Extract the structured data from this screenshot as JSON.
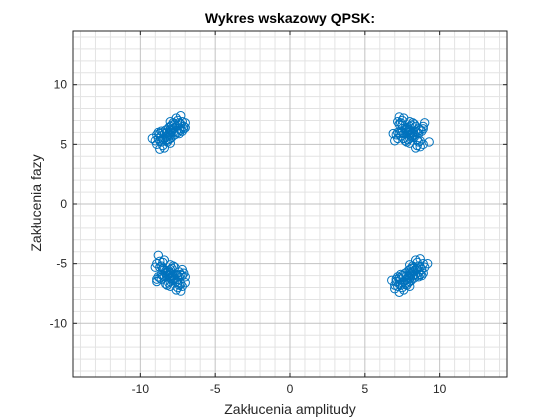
{
  "chart_data": {
    "type": "scatter",
    "title": "Wykres wskazowy QPSK:",
    "xlabel": "Zakłucenia amplitudy",
    "ylabel": "Zakłucenia fazy",
    "xlim": [
      -14.5,
      14.5
    ],
    "ylim": [
      -14.5,
      14.5
    ],
    "xticks": [
      -10,
      -5,
      0,
      5,
      10
    ],
    "yticks": [
      -10,
      -5,
      0,
      5,
      10
    ],
    "xtick_labels": [
      "-10",
      "-5",
      "0",
      "5",
      "10"
    ],
    "ytick_labels": [
      "-10",
      "-5",
      "0",
      "5",
      "10"
    ],
    "grid": true,
    "minor_grid": true,
    "marker": "open-circle",
    "color": "#0072BD",
    "series": [
      {
        "points": [
          [
            -8.0,
            6.0
          ],
          [
            -8.6,
            5.2
          ],
          [
            -7.4,
            6.8
          ],
          [
            -8.3,
            5.6
          ],
          [
            -7.7,
            6.4
          ],
          [
            -8.9,
            5.0
          ],
          [
            -7.2,
            6.9
          ],
          [
            -8.1,
            5.9
          ],
          [
            -7.9,
            6.1
          ],
          [
            -8.5,
            5.4
          ],
          [
            -7.5,
            6.6
          ],
          [
            -8.2,
            5.7
          ],
          [
            -7.8,
            6.3
          ],
          [
            -8.7,
            5.3
          ],
          [
            -7.3,
            6.7
          ],
          [
            -8.0,
            5.8
          ],
          [
            -8.0,
            6.2
          ],
          [
            -8.4,
            5.9
          ],
          [
            -7.6,
            6.1
          ],
          [
            -8.6,
            5.7
          ],
          [
            -7.4,
            6.3
          ],
          [
            -8.8,
            5.5
          ],
          [
            -7.1,
            6.5
          ],
          [
            -8.3,
            6.2
          ],
          [
            -7.7,
            5.8
          ],
          [
            -9.0,
            5.3
          ],
          [
            -7.0,
            6.8
          ],
          [
            -8.2,
            5.2
          ],
          [
            -7.8,
            6.8
          ],
          [
            -8.5,
            6.0
          ],
          [
            -7.5,
            6.0
          ],
          [
            -8.1,
            6.4
          ],
          [
            -7.9,
            5.6
          ],
          [
            -8.7,
            5.9
          ],
          [
            -7.3,
            6.2
          ],
          [
            -8.4,
            4.7
          ],
          [
            -7.6,
            7.2
          ],
          [
            -8.9,
            5.8
          ],
          [
            -7.2,
            6.1
          ],
          [
            -8.0,
            5.5
          ],
          [
            -8.0,
            6.5
          ],
          [
            -8.6,
            6.1
          ],
          [
            -7.4,
            5.9
          ],
          [
            -8.3,
            5.3
          ],
          [
            -7.7,
            6.7
          ],
          [
            -8.8,
            6.0
          ],
          [
            -7.1,
            6.3
          ],
          [
            -8.2,
            6.0
          ],
          [
            -7.8,
            6.0
          ],
          [
            -8.5,
            4.9
          ],
          [
            -7.5,
            7.0
          ],
          [
            -8.1,
            5.4
          ],
          [
            -7.9,
            6.6
          ],
          [
            -9.2,
            5.5
          ],
          [
            -7.0,
            6.4
          ],
          [
            -8.4,
            5.5
          ],
          [
            -7.6,
            6.5
          ],
          [
            -8.0,
            5.1
          ],
          [
            -8.0,
            6.9
          ],
          [
            -8.7,
            4.6
          ],
          [
            -7.3,
            7.4
          ],
          [
            8.0,
            6.0
          ],
          [
            7.4,
            6.8
          ],
          [
            8.6,
            5.2
          ],
          [
            7.7,
            6.4
          ],
          [
            8.3,
            5.6
          ],
          [
            7.2,
            6.9
          ],
          [
            8.9,
            5.0
          ],
          [
            7.9,
            6.1
          ],
          [
            8.1,
            5.9
          ],
          [
            7.5,
            6.6
          ],
          [
            8.5,
            5.4
          ],
          [
            7.8,
            6.3
          ],
          [
            8.2,
            5.7
          ],
          [
            7.3,
            6.7
          ],
          [
            8.7,
            5.3
          ],
          [
            8.0,
            6.2
          ],
          [
            8.0,
            5.8
          ],
          [
            7.6,
            5.9
          ],
          [
            8.4,
            6.1
          ],
          [
            7.4,
            5.7
          ],
          [
            8.6,
            6.3
          ],
          [
            7.2,
            5.5
          ],
          [
            8.9,
            6.5
          ],
          [
            7.7,
            6.2
          ],
          [
            8.3,
            5.8
          ],
          [
            7.0,
            5.3
          ],
          [
            9.0,
            6.8
          ],
          [
            7.8,
            5.2
          ],
          [
            8.2,
            6.8
          ],
          [
            7.5,
            6.0
          ],
          [
            8.5,
            6.0
          ],
          [
            7.9,
            6.4
          ],
          [
            8.1,
            5.6
          ],
          [
            7.3,
            5.9
          ],
          [
            8.7,
            6.2
          ],
          [
            7.6,
            7.2
          ],
          [
            8.4,
            4.7
          ],
          [
            7.1,
            5.8
          ],
          [
            8.8,
            6.1
          ],
          [
            8.0,
            5.5
          ],
          [
            8.0,
            6.5
          ],
          [
            7.4,
            6.1
          ],
          [
            8.6,
            5.9
          ],
          [
            7.7,
            5.3
          ],
          [
            8.3,
            6.7
          ],
          [
            7.2,
            6.0
          ],
          [
            8.9,
            6.3
          ],
          [
            7.8,
            6.0
          ],
          [
            8.2,
            6.0
          ],
          [
            7.5,
            7.0
          ],
          [
            8.5,
            4.9
          ],
          [
            7.9,
            5.4
          ],
          [
            8.1,
            6.6
          ],
          [
            6.9,
            5.9
          ],
          [
            9.3,
            5.2
          ],
          [
            7.6,
            5.5
          ],
          [
            8.4,
            6.5
          ],
          [
            8.0,
            5.1
          ],
          [
            8.0,
            6.9
          ],
          [
            7.3,
            7.3
          ],
          [
            8.7,
            4.8
          ],
          [
            -8.0,
            -6.0
          ],
          [
            -7.4,
            -6.8
          ],
          [
            -8.6,
            -5.2
          ],
          [
            -7.7,
            -6.4
          ],
          [
            -8.3,
            -5.6
          ],
          [
            -7.2,
            -6.9
          ],
          [
            -8.9,
            -5.0
          ],
          [
            -7.9,
            -6.1
          ],
          [
            -8.1,
            -5.9
          ],
          [
            -7.5,
            -6.6
          ],
          [
            -8.5,
            -5.4
          ],
          [
            -7.8,
            -6.3
          ],
          [
            -8.2,
            -5.7
          ],
          [
            -7.3,
            -6.7
          ],
          [
            -8.7,
            -5.3
          ],
          [
            -8.0,
            -6.2
          ],
          [
            -8.0,
            -5.8
          ],
          [
            -7.6,
            -5.9
          ],
          [
            -8.4,
            -6.1
          ],
          [
            -7.4,
            -5.7
          ],
          [
            -8.6,
            -6.3
          ],
          [
            -7.2,
            -5.5
          ],
          [
            -8.9,
            -6.5
          ],
          [
            -7.7,
            -6.2
          ],
          [
            -8.3,
            -5.8
          ],
          [
            -7.0,
            -6.1
          ],
          [
            -9.0,
            -5.3
          ],
          [
            -7.8,
            -5.2
          ],
          [
            -8.2,
            -6.8
          ],
          [
            -7.5,
            -6.0
          ],
          [
            -8.5,
            -6.0
          ],
          [
            -7.9,
            -6.4
          ],
          [
            -8.1,
            -5.6
          ],
          [
            -7.3,
            -5.9
          ],
          [
            -8.7,
            -6.2
          ],
          [
            -7.6,
            -7.2
          ],
          [
            -8.4,
            -4.7
          ],
          [
            -7.1,
            -5.8
          ],
          [
            -8.8,
            -6.1
          ],
          [
            -8.0,
            -5.5
          ],
          [
            -8.0,
            -6.5
          ],
          [
            -7.4,
            -6.1
          ],
          [
            -8.6,
            -5.9
          ],
          [
            -7.7,
            -5.3
          ],
          [
            -8.3,
            -6.7
          ],
          [
            -7.2,
            -6.0
          ],
          [
            -8.9,
            -6.3
          ],
          [
            -7.8,
            -6.0
          ],
          [
            -8.2,
            -6.0
          ],
          [
            -7.5,
            -7.0
          ],
          [
            -8.5,
            -4.9
          ],
          [
            -7.9,
            -5.4
          ],
          [
            -8.1,
            -6.6
          ],
          [
            -7.0,
            -6.6
          ],
          [
            -8.8,
            -4.3
          ],
          [
            -7.6,
            -6.5
          ],
          [
            -8.4,
            -5.5
          ],
          [
            -8.0,
            -5.1
          ],
          [
            -8.0,
            -6.9
          ],
          [
            -7.3,
            -7.3
          ],
          [
            -8.7,
            -4.8
          ],
          [
            8.0,
            -6.0
          ],
          [
            8.6,
            -5.2
          ],
          [
            7.4,
            -6.8
          ],
          [
            8.3,
            -5.6
          ],
          [
            7.7,
            -6.4
          ],
          [
            8.9,
            -5.0
          ],
          [
            7.2,
            -6.9
          ],
          [
            8.1,
            -5.9
          ],
          [
            7.9,
            -6.1
          ],
          [
            8.5,
            -5.4
          ],
          [
            7.5,
            -6.6
          ],
          [
            8.2,
            -5.7
          ],
          [
            7.8,
            -6.3
          ],
          [
            8.7,
            -5.3
          ],
          [
            7.3,
            -6.7
          ],
          [
            8.0,
            -5.8
          ],
          [
            8.0,
            -6.2
          ],
          [
            8.4,
            -5.9
          ],
          [
            7.6,
            -6.1
          ],
          [
            8.6,
            -5.7
          ],
          [
            7.4,
            -6.3
          ],
          [
            8.8,
            -5.5
          ],
          [
            7.1,
            -6.5
          ],
          [
            8.3,
            -6.2
          ],
          [
            7.7,
            -5.8
          ],
          [
            9.0,
            -5.3
          ],
          [
            7.0,
            -6.8
          ],
          [
            8.2,
            -5.2
          ],
          [
            7.8,
            -6.8
          ],
          [
            8.5,
            -6.0
          ],
          [
            7.5,
            -6.0
          ],
          [
            8.1,
            -6.4
          ],
          [
            7.9,
            -5.6
          ],
          [
            8.7,
            -5.9
          ],
          [
            7.3,
            -6.2
          ],
          [
            8.4,
            -4.7
          ],
          [
            7.6,
            -7.2
          ],
          [
            8.9,
            -5.8
          ],
          [
            7.2,
            -6.1
          ],
          [
            8.0,
            -5.5
          ],
          [
            8.0,
            -6.5
          ],
          [
            8.6,
            -6.1
          ],
          [
            7.4,
            -5.9
          ],
          [
            8.3,
            -5.3
          ],
          [
            7.7,
            -6.7
          ],
          [
            8.8,
            -6.0
          ],
          [
            7.1,
            -6.3
          ],
          [
            8.2,
            -6.0
          ],
          [
            7.8,
            -6.0
          ],
          [
            8.5,
            -4.9
          ],
          [
            7.5,
            -7.0
          ],
          [
            8.1,
            -5.4
          ],
          [
            7.9,
            -6.6
          ],
          [
            9.2,
            -5.0
          ],
          [
            7.0,
            -7.1
          ],
          [
            6.8,
            -6.4
          ],
          [
            8.4,
            -5.5
          ],
          [
            7.6,
            -6.5
          ],
          [
            8.0,
            -5.1
          ],
          [
            8.0,
            -6.9
          ],
          [
            8.7,
            -4.6
          ],
          [
            7.3,
            -7.4
          ]
        ]
      }
    ]
  }
}
